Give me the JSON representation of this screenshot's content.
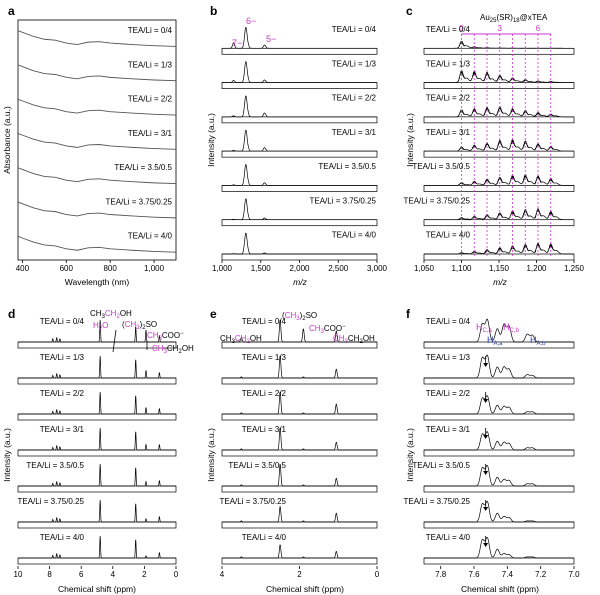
{
  "colors": {
    "magenta": "#cc33cc",
    "blue": "#3344aa",
    "trace": "#000000",
    "trace_a": "#555555"
  },
  "panels": {
    "a": {
      "label": "a",
      "xlabel": "Wavelength (nm)",
      "ylabel": "Absorbance (a.u.)",
      "xticks": [
        "400",
        "600",
        "800",
        "1,000"
      ],
      "xlim": [
        380,
        1100
      ],
      "rows": [
        "TEA/Li = 0/4",
        "TEA/Li = 1/3",
        "TEA/Li = 2/2",
        "TEA/Li = 3/1",
        "TEA/Li = 3.5/0.5",
        "TEA/Li = 3.75/0.25",
        "TEA/Li = 4/0"
      ]
    },
    "b": {
      "label": "b",
      "xlabel": "m/z",
      "ylabel": "Intensity (a.u.)",
      "xticks": [
        "1,000",
        "1,500",
        "2,000",
        "2,500",
        "3,000"
      ],
      "xlim": [
        1000,
        3000
      ],
      "rows": [
        "TEA/Li = 0/4",
        "TEA/Li = 1/3",
        "TEA/Li = 2/2",
        "TEA/Li = 3/1",
        "TEA/Li = 3.5/0.5",
        "TEA/Li = 3.75/0.25",
        "TEA/Li = 4/0"
      ],
      "charge_labels": [
        "7−",
        "6−",
        "5−"
      ]
    },
    "c": {
      "label": "c",
      "xlabel": "m/z",
      "ylabel": "Intensity (a.u.)",
      "xticks": [
        "1,050",
        "1,100",
        "1,150",
        "1,200",
        "1,250"
      ],
      "xlim": [
        1050,
        1250
      ],
      "title_main": "Au",
      "title_sub1": "25",
      "title_mid": "(SR)",
      "title_sub2": "18",
      "title_end": "@xTEA",
      "scale_labels": [
        "0",
        "3",
        "6"
      ],
      "rows": [
        "TEA/Li = 0/4",
        "TEA/Li = 1/3",
        "TEA/Li = 2/2",
        "TEA/Li = 3/1",
        "TEA/Li = 3.5/0.5",
        "TEA/Li = 3.75/0.25",
        "TEA/Li = 4/0"
      ]
    },
    "d": {
      "label": "d",
      "xlabel": "Chemical shift (ppm)",
      "ylabel": "Intensity (a.u.)",
      "xticks": [
        "10",
        "8",
        "6",
        "4",
        "2",
        "0"
      ],
      "xlim": [
        10,
        0
      ],
      "annotations": {
        "ethanol_top": "CH3CH2OH",
        "water": "H2O",
        "dmso": "(CH3)2SO",
        "acetate": "CH3COO−",
        "ethanol_bottom": "CH3CH2OH"
      },
      "rows": [
        "TEA/Li = 0/4",
        "TEA/Li = 1/3",
        "TEA/Li = 2/2",
        "TEA/Li = 3/1",
        "TEA/Li = 3.5/0.5",
        "TEA/Li = 3.75/0.25",
        "TEA/Li = 4/0"
      ]
    },
    "e": {
      "label": "e",
      "xlabel": "Chemical shift (ppm)",
      "ylabel": "Intensity (a.u.)",
      "xticks": [
        "4",
        "2",
        "0"
      ],
      "xlim": [
        4,
        0
      ],
      "annotations": {
        "dmso": "(CH3)2SO",
        "acetate": "CH3COO−",
        "ethanol_left": "CH3CH2OH",
        "ethanol_right": "CH3CH2OH"
      },
      "rows": [
        "TEA/Li = 0/4",
        "TEA/Li = 1/3",
        "TEA/Li = 2/2",
        "TEA/Li = 3/1",
        "TEA/Li = 3.5/0.5",
        "TEA/Li = 3.75/0.25",
        "TEA/Li = 4/0"
      ]
    },
    "f": {
      "label": "f",
      "xlabel": "Chemical shift (ppm)",
      "ylabel": "Intensity (a.u.)",
      "xticks": [
        "7.8",
        "7.6",
        "7.4",
        "7.2",
        "7.0"
      ],
      "xlim": [
        7.9,
        7.0
      ],
      "annotations": {
        "hca": "H",
        "hca_sub": "C,a",
        "haa": "H",
        "haa_sub": "A,a",
        "hcb": "H",
        "hcb_sub": "C,b",
        "hab": "H",
        "hab_sub": "A,b"
      },
      "rows": [
        "TEA/Li = 0/4",
        "TEA/Li = 1/3",
        "TEA/Li = 2/2",
        "TEA/Li = 3/1",
        "TEA/Li = 3.5/0.5",
        "TEA/Li = 3.75/0.25",
        "TEA/Li = 4/0"
      ]
    }
  },
  "chart_data": [
    {
      "panel": "a",
      "type": "line",
      "x": [
        380,
        400,
        450,
        500,
        550,
        600,
        650,
        700,
        750,
        800,
        900,
        1000,
        1100
      ],
      "series": [
        {
          "name": "TEA/Li = 0/4",
          "values": [
            0.82,
            0.75,
            0.58,
            0.46,
            0.42,
            0.3,
            0.24,
            0.34,
            0.36,
            0.3,
            0.24,
            0.19,
            0.16
          ]
        },
        {
          "name": "TEA/Li = 1/3",
          "values": [
            0.82,
            0.75,
            0.58,
            0.46,
            0.42,
            0.3,
            0.24,
            0.34,
            0.36,
            0.3,
            0.24,
            0.19,
            0.16
          ]
        },
        {
          "name": "TEA/Li = 2/2",
          "values": [
            0.82,
            0.75,
            0.58,
            0.46,
            0.42,
            0.3,
            0.24,
            0.34,
            0.36,
            0.3,
            0.24,
            0.19,
            0.16
          ]
        },
        {
          "name": "TEA/Li = 3/1",
          "values": [
            0.82,
            0.75,
            0.58,
            0.46,
            0.42,
            0.3,
            0.24,
            0.34,
            0.36,
            0.3,
            0.24,
            0.19,
            0.16
          ]
        },
        {
          "name": "TEA/Li = 3.5/0.5",
          "values": [
            0.82,
            0.75,
            0.58,
            0.46,
            0.42,
            0.3,
            0.24,
            0.34,
            0.36,
            0.3,
            0.24,
            0.19,
            0.16
          ]
        },
        {
          "name": "TEA/Li = 3.75/0.25",
          "values": [
            0.82,
            0.75,
            0.58,
            0.46,
            0.42,
            0.3,
            0.24,
            0.34,
            0.36,
            0.3,
            0.24,
            0.19,
            0.16
          ]
        },
        {
          "name": "TEA/Li = 4/0",
          "values": [
            0.82,
            0.75,
            0.58,
            0.46,
            0.42,
            0.3,
            0.24,
            0.34,
            0.36,
            0.3,
            0.24,
            0.19,
            0.16
          ]
        }
      ]
    },
    {
      "panel": "b",
      "type": "line",
      "peak_centers": [
        1150,
        1310,
        1550
      ],
      "series": [
        {
          "name": "TEA/Li = 0/4",
          "heights": [
            0.25,
            1.0,
            0.18
          ]
        },
        {
          "name": "TEA/Li = 1/3",
          "heights": [
            0.1,
            1.0,
            0.15
          ]
        },
        {
          "name": "TEA/Li = 2/2",
          "heights": [
            0.05,
            1.0,
            0.22
          ]
        },
        {
          "name": "TEA/Li = 3/1",
          "heights": [
            0.04,
            1.0,
            0.2
          ]
        },
        {
          "name": "TEA/Li = 3.5/0.5",
          "heights": [
            0.03,
            1.0,
            0.15
          ]
        },
        {
          "name": "TEA/Li = 3.75/0.25",
          "heights": [
            0.02,
            1.0,
            0.1
          ]
        },
        {
          "name": "TEA/Li = 4/0",
          "heights": [
            0.02,
            1.0,
            0.06
          ]
        }
      ]
    },
    {
      "panel": "c",
      "type": "line",
      "guide_lines": [
        1100,
        1117,
        1134,
        1151,
        1168,
        1185,
        1202,
        1219
      ],
      "series": [
        {
          "name": "TEA/Li = 0/4",
          "peak_heights": [
            0.5,
            0.12,
            0.05,
            0.03,
            0.02,
            0.01,
            0.01,
            0.01
          ]
        },
        {
          "name": "TEA/Li = 1/3",
          "peak_heights": [
            0.9,
            0.85,
            0.75,
            0.55,
            0.35,
            0.22,
            0.12,
            0.08
          ]
        },
        {
          "name": "TEA/Li = 2/2",
          "peak_heights": [
            0.5,
            0.6,
            0.7,
            0.75,
            0.6,
            0.45,
            0.3,
            0.2
          ]
        },
        {
          "name": "TEA/Li = 3/1",
          "peak_heights": [
            0.3,
            0.45,
            0.6,
            0.8,
            0.85,
            0.75,
            0.55,
            0.35
          ]
        },
        {
          "name": "TEA/Li = 3.5/0.5",
          "peak_heights": [
            0.2,
            0.3,
            0.45,
            0.6,
            0.75,
            0.8,
            0.7,
            0.5
          ]
        },
        {
          "name": "TEA/Li = 3.75/0.25",
          "peak_heights": [
            0.15,
            0.25,
            0.35,
            0.5,
            0.65,
            0.75,
            0.8,
            0.6
          ]
        },
        {
          "name": "TEA/Li = 4/0",
          "peak_heights": [
            0.1,
            0.2,
            0.3,
            0.45,
            0.6,
            0.7,
            0.8,
            0.75
          ]
        }
      ]
    },
    {
      "panel": "d",
      "type": "line",
      "peaks_ppm": [
        7.8,
        7.55,
        7.35,
        4.8,
        2.55,
        1.9,
        1.05
      ],
      "series": [
        {
          "name": "TEA/Li = 0/4",
          "heights": [
            0.15,
            0.2,
            0.15,
            1.0,
            0.7,
            0.55,
            0.3
          ]
        },
        {
          "name": "TEA/Li = 1/3",
          "heights": [
            0.12,
            0.2,
            0.15,
            1.0,
            0.85,
            0.35,
            0.25
          ]
        },
        {
          "name": "TEA/Li = 2/2",
          "heights": [
            0.12,
            0.2,
            0.15,
            1.0,
            0.85,
            0.3,
            0.25
          ]
        },
        {
          "name": "TEA/Li = 3/1",
          "heights": [
            0.12,
            0.2,
            0.15,
            1.0,
            0.85,
            0.25,
            0.25
          ]
        },
        {
          "name": "TEA/Li = 3.5/0.5",
          "heights": [
            0.12,
            0.2,
            0.15,
            1.0,
            0.85,
            0.2,
            0.25
          ]
        },
        {
          "name": "TEA/Li = 3.75/0.25",
          "heights": [
            0.12,
            0.2,
            0.15,
            1.0,
            0.85,
            0.15,
            0.25
          ]
        },
        {
          "name": "TEA/Li = 4/0",
          "heights": [
            0.12,
            0.2,
            0.15,
            1.0,
            0.85,
            0.1,
            0.25
          ]
        }
      ]
    },
    {
      "panel": "e",
      "type": "line",
      "peaks_ppm": [
        3.5,
        2.5,
        1.9,
        1.05
      ],
      "series": [
        {
          "name": "TEA/Li = 0/4",
          "heights": [
            0.2,
            1.0,
            0.6,
            0.5
          ]
        },
        {
          "name": "TEA/Li = 1/3",
          "heights": [
            0.05,
            1.0,
            0.05,
            0.4
          ]
        },
        {
          "name": "TEA/Li = 2/2",
          "heights": [
            0.05,
            1.0,
            0.05,
            0.45
          ]
        },
        {
          "name": "TEA/Li = 3/1",
          "heights": [
            0.05,
            1.0,
            0.05,
            0.35
          ]
        },
        {
          "name": "TEA/Li = 3.5/0.5",
          "heights": [
            0.05,
            1.0,
            0.05,
            0.35
          ]
        },
        {
          "name": "TEA/Li = 3.75/0.25",
          "heights": [
            0.05,
            0.7,
            0.05,
            0.4
          ]
        },
        {
          "name": "TEA/Li = 4/0",
          "heights": [
            0.05,
            0.6,
            0.05,
            0.3
          ]
        }
      ]
    },
    {
      "panel": "f",
      "type": "line",
      "peaks_ppm": [
        7.55,
        7.52,
        7.46,
        7.42,
        7.39,
        7.28,
        7.25
      ],
      "series": [
        {
          "name": "TEA/Li = 0/4",
          "heights": [
            0.8,
            1.0,
            0.6,
            0.8,
            0.7,
            0.35,
            0.3
          ]
        },
        {
          "name": "TEA/Li = 1/3",
          "heights": [
            0.9,
            1.0,
            0.5,
            0.5,
            0.4,
            0.15,
            0.12
          ]
        },
        {
          "name": "TEA/Li = 2/2",
          "heights": [
            0.7,
            0.8,
            0.4,
            0.35,
            0.3,
            0.1,
            0.1
          ]
        },
        {
          "name": "TEA/Li = 3/1",
          "heights": [
            0.7,
            0.8,
            0.4,
            0.35,
            0.3,
            0.1,
            0.1
          ]
        },
        {
          "name": "TEA/Li = 3.5/0.5",
          "heights": [
            0.8,
            0.9,
            0.4,
            0.3,
            0.25,
            0.1,
            0.1
          ]
        },
        {
          "name": "TEA/Li = 3.75/0.25",
          "heights": [
            0.8,
            0.9,
            0.4,
            0.25,
            0.2,
            0.05,
            0.05
          ]
        },
        {
          "name": "TEA/Li = 4/0",
          "heights": [
            0.8,
            0.9,
            0.4,
            0.2,
            0.15,
            0.05,
            0.05
          ]
        }
      ]
    }
  ]
}
